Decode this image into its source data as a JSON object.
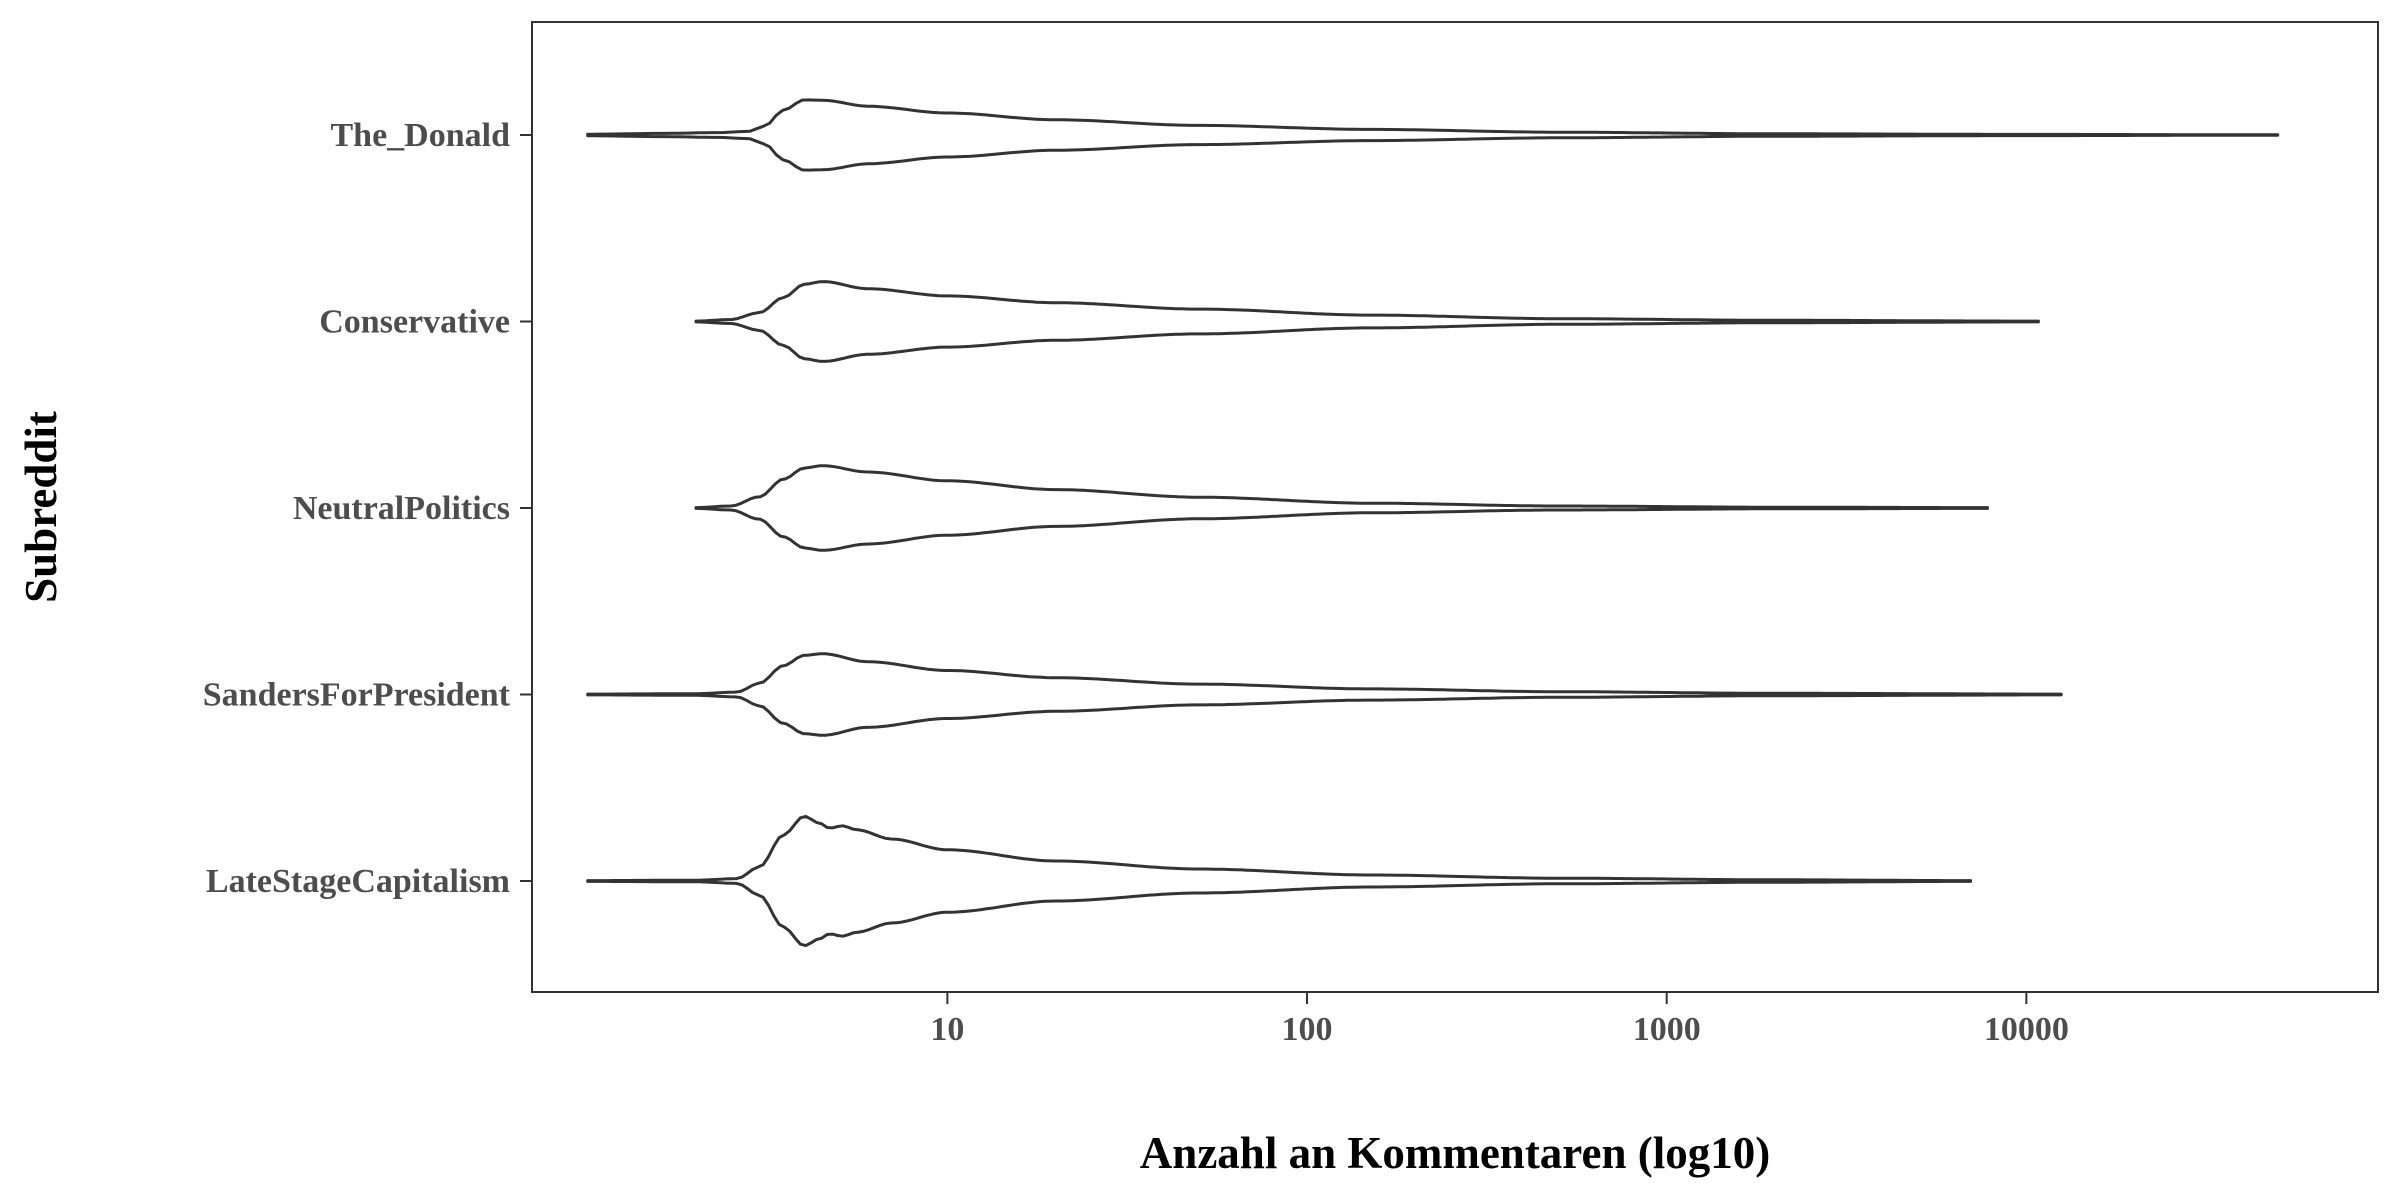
{
  "chart_data": {
    "type": "violin",
    "xlabel": "Anzahl an Kommentaren (log10)",
    "ylabel": "Subreddit",
    "x_scale": "log10",
    "xlim": [
      0.7,
      95000
    ],
    "x_ticks": [
      10,
      100,
      1000,
      10000
    ],
    "x_tick_labels": [
      "10",
      "100",
      "1000",
      "10000"
    ],
    "grid": false,
    "legend": "none",
    "categories": [
      "The_Donald",
      "Conservative",
      "NeutralPolitics",
      "SandersForPresident",
      "LateStageCapitalism"
    ],
    "series": [
      {
        "name": "The_Donald",
        "density_profile": [
          [
            1,
            0.02
          ],
          [
            1.6,
            0.04
          ],
          [
            2.3,
            0.06
          ],
          [
            2.8,
            0.09
          ],
          [
            3.1,
            0.22
          ],
          [
            3.5,
            0.62
          ],
          [
            4,
            0.88
          ],
          [
            4.5,
            0.87
          ],
          [
            6,
            0.72
          ],
          [
            10,
            0.55
          ],
          [
            20,
            0.38
          ],
          [
            50,
            0.24
          ],
          [
            150,
            0.14
          ],
          [
            500,
            0.07
          ],
          [
            2000,
            0.03
          ],
          [
            10000,
            0.015
          ],
          [
            50000,
            0.005
          ]
        ]
      },
      {
        "name": "Conservative",
        "density_profile": [
          [
            2,
            0.01
          ],
          [
            2.5,
            0.05
          ],
          [
            3,
            0.22
          ],
          [
            3.5,
            0.6
          ],
          [
            4,
            0.93
          ],
          [
            4.5,
            1.0
          ],
          [
            6,
            0.82
          ],
          [
            10,
            0.64
          ],
          [
            20,
            0.47
          ],
          [
            50,
            0.31
          ],
          [
            150,
            0.16
          ],
          [
            500,
            0.07
          ],
          [
            2000,
            0.03
          ],
          [
            10800,
            0.01
          ]
        ]
      },
      {
        "name": "NeutralPolitics",
        "density_profile": [
          [
            2,
            0.01
          ],
          [
            2.5,
            0.05
          ],
          [
            3,
            0.28
          ],
          [
            3.5,
            0.72
          ],
          [
            4,
            1.0
          ],
          [
            4.5,
            1.06
          ],
          [
            6,
            0.9
          ],
          [
            10,
            0.68
          ],
          [
            20,
            0.46
          ],
          [
            50,
            0.27
          ],
          [
            150,
            0.12
          ],
          [
            500,
            0.05
          ],
          [
            2000,
            0.02
          ],
          [
            7800,
            0.01
          ]
        ]
      },
      {
        "name": "SandersForPresident",
        "density_profile": [
          [
            1,
            0.01
          ],
          [
            2,
            0.02
          ],
          [
            2.6,
            0.06
          ],
          [
            3,
            0.28
          ],
          [
            3.5,
            0.72
          ],
          [
            4,
            0.98
          ],
          [
            4.5,
            1.02
          ],
          [
            6,
            0.82
          ],
          [
            10,
            0.6
          ],
          [
            20,
            0.42
          ],
          [
            50,
            0.26
          ],
          [
            150,
            0.14
          ],
          [
            500,
            0.07
          ],
          [
            2000,
            0.03
          ],
          [
            12500,
            0.01
          ]
        ]
      },
      {
        "name": "LateStageCapitalism",
        "density_profile": [
          [
            1,
            0.01
          ],
          [
            2,
            0.02
          ],
          [
            2.6,
            0.06
          ],
          [
            3,
            0.35
          ],
          [
            3.5,
            1.15
          ],
          [
            4,
            1.62
          ],
          [
            4.4,
            1.45
          ],
          [
            4.7,
            1.32
          ],
          [
            5.1,
            1.38
          ],
          [
            5.6,
            1.28
          ],
          [
            7,
            1.05
          ],
          [
            10,
            0.78
          ],
          [
            20,
            0.5
          ],
          [
            50,
            0.3
          ],
          [
            150,
            0.15
          ],
          [
            500,
            0.07
          ],
          [
            2000,
            0.03
          ],
          [
            7000,
            0.01
          ]
        ]
      }
    ]
  }
}
